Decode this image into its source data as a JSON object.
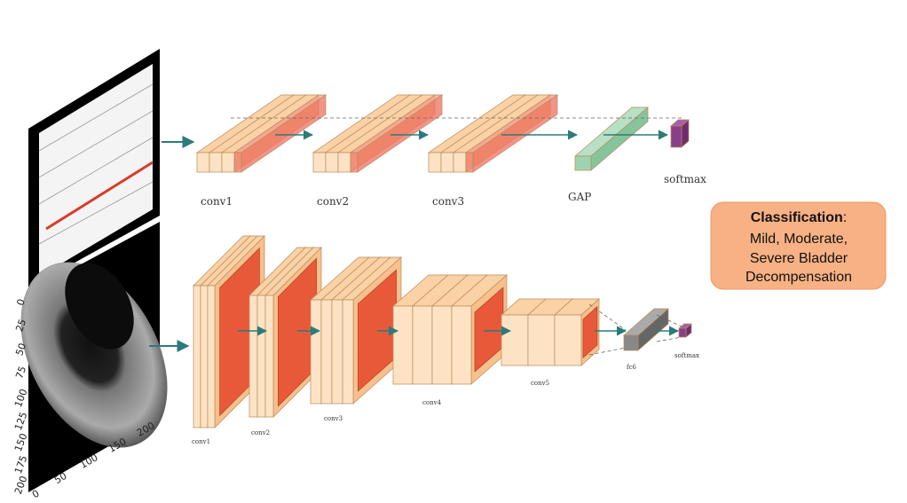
{
  "top_network": {
    "layers": [
      "conv1",
      "conv2",
      "conv3",
      "GAP",
      "softmax"
    ]
  },
  "bottom_network": {
    "layers": [
      "conv1",
      "conv2",
      "conv3",
      "conv4",
      "conv5",
      "fc6",
      "softmax"
    ]
  },
  "classification": {
    "title": "Classification",
    "separator": ":",
    "lines": [
      "Mild, Moderate,",
      "Severe Bladder",
      "Decompensation"
    ]
  },
  "image_axes": {
    "y_ticks": [
      "0",
      "25",
      "50",
      "75",
      "100",
      "125",
      "150",
      "175",
      "200"
    ],
    "x_ticks": [
      "0",
      "50",
      "100",
      "150",
      "200"
    ]
  }
}
